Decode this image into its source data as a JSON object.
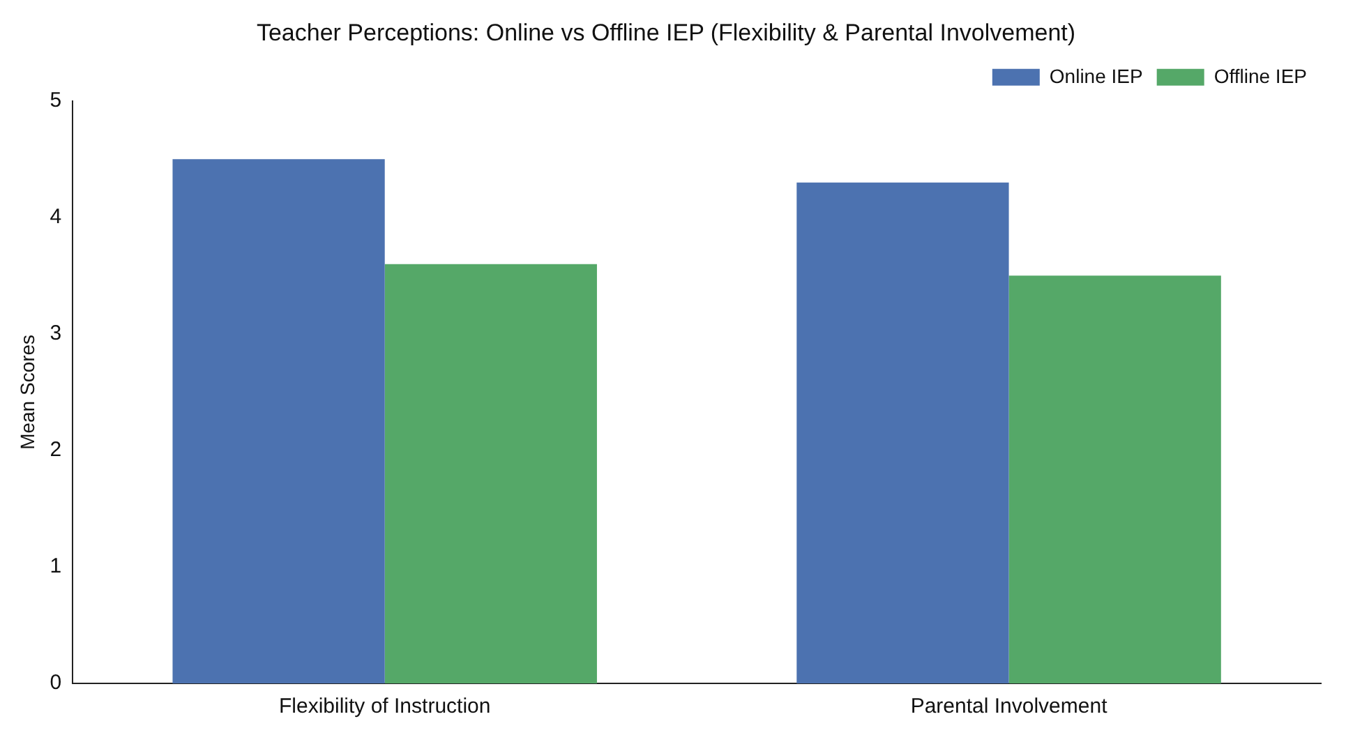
{
  "chart_data": {
    "type": "bar",
    "title": "Teacher Perceptions: Online vs Offline IEP (Flexibility & Parental Involvement)",
    "ylabel": "Mean Scores",
    "categories": [
      "Flexibility of Instruction",
      "Parental Involvement"
    ],
    "series": [
      {
        "name": "Online IEP",
        "color": "#4c72b0",
        "values": [
          4.5,
          4.3
        ]
      },
      {
        "name": "Offline IEP",
        "color": "#55a868",
        "values": [
          3.6,
          3.5
        ]
      }
    ],
    "ylim": [
      0,
      5
    ],
    "yticks": [
      0,
      1,
      2,
      3,
      4,
      5
    ],
    "grid": false,
    "legend": "top right"
  }
}
